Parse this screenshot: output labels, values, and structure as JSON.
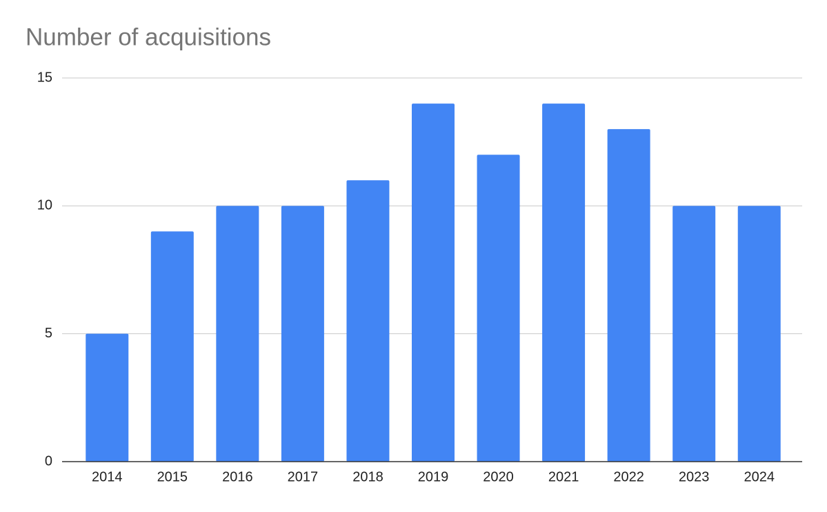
{
  "chart_data": {
    "type": "bar",
    "title": "Number of acquisitions",
    "categories": [
      "2014",
      "2015",
      "2016",
      "2017",
      "2018",
      "2019",
      "2020",
      "2021",
      "2022",
      "2023",
      "2024"
    ],
    "values": [
      5,
      9,
      10,
      10,
      11,
      14,
      12,
      14,
      13,
      10,
      10
    ],
    "color": "#4285f4",
    "ylim": [
      0,
      15
    ],
    "yticks": [
      0,
      5,
      10,
      15
    ],
    "grid": true
  }
}
